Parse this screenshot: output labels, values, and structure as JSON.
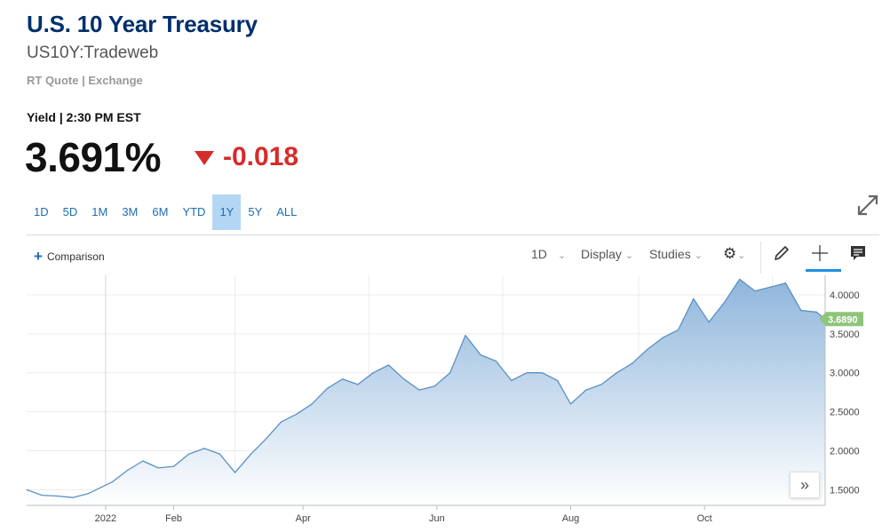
{
  "header": {
    "title": "U.S. 10 Year Treasury",
    "symbol": "US10Y:Tradeweb",
    "quote_meta": "RT Quote | Exchange",
    "yield_label": "Yield | 2:30 PM EST",
    "last": "3.691%",
    "change": "-0.018",
    "change_color": "#d62b2b"
  },
  "ranges": [
    "1D",
    "5D",
    "1M",
    "3M",
    "6M",
    "YTD",
    "1Y",
    "5Y",
    "ALL"
  ],
  "active_range": "1Y",
  "toolbar": {
    "comparison": "Comparison",
    "interval": "1D",
    "display": "Display",
    "studies": "Studies",
    "icons": [
      "gear-icon",
      "pencil-icon",
      "crosshair-icon",
      "comment-icon"
    ]
  },
  "colors": {
    "line": "#5b90c4",
    "fill_top": "#8fb6dc",
    "fill_bottom": "#ffffff",
    "last_badge": "#8fc47a",
    "accent": "#1f6db1"
  },
  "chart_data": {
    "type": "area",
    "x_tick_labels": [
      "2022",
      "Feb",
      "Apr",
      "Jun",
      "Aug",
      "Oct"
    ],
    "y_tick_labels": [
      "1.5000",
      "2.0000",
      "2.5000",
      "3.0000",
      "3.5000",
      "4.0000"
    ],
    "y_ticks": [
      1.5,
      2.0,
      2.5,
      3.0,
      3.5,
      4.0
    ],
    "ylim": [
      1.3,
      4.25
    ],
    "last_value_label": "3.6890",
    "grid": true,
    "series": [
      {
        "x": [
          "2021-11-26",
          "2021-12-03",
          "2021-12-10",
          "2021-12-17",
          "2021-12-24",
          "2022-01-04",
          "2022-01-11",
          "2022-01-18",
          "2022-01-25",
          "2022-02-01",
          "2022-02-08",
          "2022-02-15",
          "2022-02-22",
          "2022-03-01",
          "2022-03-08",
          "2022-03-15",
          "2022-03-22",
          "2022-03-29",
          "2022-04-05",
          "2022-04-12",
          "2022-04-19",
          "2022-04-26",
          "2022-05-03",
          "2022-05-10",
          "2022-05-17",
          "2022-05-24",
          "2022-05-31",
          "2022-06-07",
          "2022-06-14",
          "2022-06-21",
          "2022-06-28",
          "2022-07-05",
          "2022-07-12",
          "2022-07-19",
          "2022-07-26",
          "2022-08-01",
          "2022-08-08",
          "2022-08-15",
          "2022-08-22",
          "2022-08-29",
          "2022-09-05",
          "2022-09-12",
          "2022-09-19",
          "2022-09-26",
          "2022-10-03",
          "2022-10-10",
          "2022-10-17",
          "2022-10-24",
          "2022-10-31",
          "2022-11-07",
          "2022-11-14",
          "2022-11-21",
          "2022-11-25"
        ],
        "values": [
          1.5,
          1.43,
          1.42,
          1.4,
          1.45,
          1.6,
          1.75,
          1.87,
          1.78,
          1.8,
          1.96,
          2.03,
          1.96,
          1.72,
          1.95,
          2.15,
          2.37,
          2.47,
          2.6,
          2.8,
          2.92,
          2.85,
          3.0,
          3.1,
          2.92,
          2.78,
          2.83,
          3.0,
          3.48,
          3.23,
          3.15,
          2.9,
          3.0,
          3.0,
          2.9,
          2.6,
          2.78,
          2.85,
          3.0,
          3.12,
          3.3,
          3.45,
          3.55,
          3.95,
          3.65,
          3.9,
          4.2,
          4.05,
          4.1,
          4.15,
          3.8,
          3.78,
          3.689
        ]
      }
    ]
  }
}
